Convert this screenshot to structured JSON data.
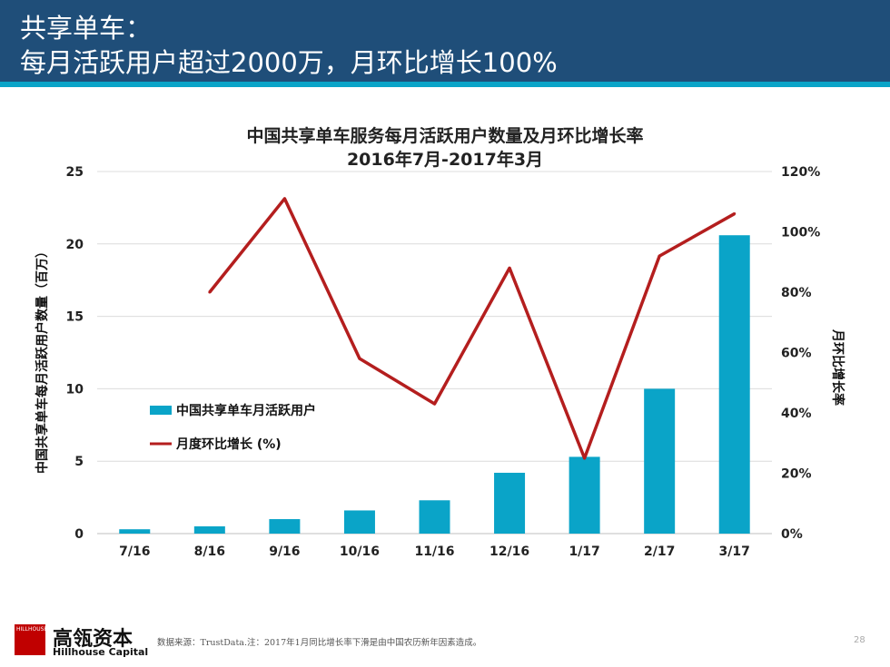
{
  "header": {
    "title_line1": "共享单车：",
    "title_line2": "每月活跃用户超过2000万，月环比增长100%"
  },
  "chart_data": {
    "type": "bar",
    "title_line1": "中国共享单车服务每月活跃用户数量及月环比增长率",
    "title_line2": "2016年7月-2017年3月",
    "categories": [
      "7/16",
      "8/16",
      "9/16",
      "10/16",
      "11/16",
      "12/16",
      "1/17",
      "2/17",
      "3/17"
    ],
    "series": [
      {
        "name": "中国共享单车月活跃用户",
        "type": "bar",
        "axis": "left",
        "color": "#0aa4c8",
        "values": [
          0.3,
          0.5,
          1.0,
          1.6,
          2.3,
          4.2,
          5.3,
          10.0,
          20.6
        ]
      },
      {
        "name": "月度环比增长 (%)",
        "type": "line",
        "axis": "right",
        "color": "#b41e1e",
        "values": [
          null,
          80,
          111,
          58,
          43,
          88,
          25,
          92,
          106
        ]
      }
    ],
    "ylabel_left": "中国共享单车每月活跃用户数量（百万）",
    "ylabel_right": "月环比增长率",
    "ylim_left": [
      0,
      25
    ],
    "yticks_left": [
      "0",
      "5",
      "10",
      "15",
      "20",
      "25"
    ],
    "ylim_right": [
      0,
      120
    ],
    "yticks_right": [
      "0%",
      "20%",
      "40%",
      "60%",
      "80%",
      "100%",
      "120%"
    ],
    "grid": true,
    "legend_position": "inside-left"
  },
  "footer": {
    "logo_small": "HILLHOUSE",
    "brand_cn": "高瓴资本",
    "brand_en": "Hillhouse Capital",
    "source": "数据来源：TrustData.注：2017年1月同比增长率下滑是由中国农历新年因素造成。",
    "page": "28"
  }
}
